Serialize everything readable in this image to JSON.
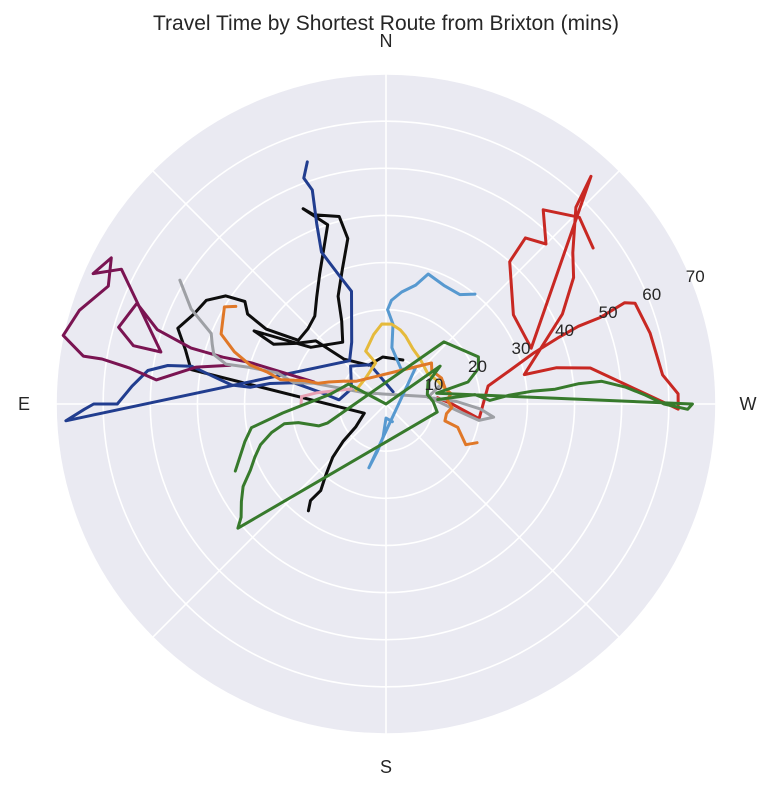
{
  "chart_data": {
    "type": "polar-line",
    "title": "Travel Time by Shortest Route from Brixton (mins)",
    "directions": {
      "north": "N",
      "east": "E",
      "south": "S",
      "west": "W"
    },
    "radial_axis": {
      "ticks": [
        10,
        20,
        30,
        40,
        50,
        60,
        70
      ],
      "tick_labels": [
        "10",
        "20",
        "30",
        "40",
        "50",
        "60",
        "70"
      ],
      "range": [
        0,
        70
      ]
    },
    "grid": true,
    "angle_convention": "bearing in degrees from North, East on the left, West on the right",
    "series": [
      {
        "color": "#c82823",
        "points": [
          [
            -83,
            11
          ],
          [
            -90,
            14
          ],
          [
            -99,
            20
          ],
          [
            -80,
            22
          ],
          [
            -75,
            27
          ],
          [
            -71,
            33
          ],
          [
            -69,
            39
          ],
          [
            -68,
            44
          ],
          [
            -68,
            49
          ],
          [
            -67,
            55
          ],
          [
            -68,
            57
          ],
          [
            -75,
            58
          ],
          [
            -84,
            59
          ],
          [
            -88,
            62
          ],
          [
            -91,
            62
          ],
          [
            -80,
            44
          ],
          [
            -78,
            37
          ],
          [
            -78,
            30
          ],
          [
            -63,
            42
          ],
          [
            -56,
            48
          ],
          [
            -51,
            51
          ],
          [
            -44,
            58
          ],
          [
            -42,
            65
          ],
          [
            -69,
            33
          ],
          [
            -55,
            33
          ],
          [
            -41,
            40
          ],
          [
            -40,
            46
          ],
          [
            -45,
            48
          ],
          [
            -39,
            53
          ],
          [
            -46,
            57
          ],
          [
            -53,
            55
          ]
        ]
      },
      {
        "color": "#0d0d0d",
        "points": [
          [
            -21,
            10
          ],
          [
            4,
            10
          ],
          [
            24,
            9
          ],
          [
            43,
            13
          ],
          [
            48,
            20
          ],
          [
            56,
            23
          ],
          [
            62,
            27
          ],
          [
            61,
            32
          ],
          [
            53,
            20
          ],
          [
            35,
            16
          ],
          [
            28,
            20
          ],
          [
            24,
            25
          ],
          [
            18,
            30
          ],
          [
            13,
            36
          ],
          [
            14,
            41
          ],
          [
            21,
            43
          ],
          [
            23,
            45
          ],
          [
            18,
            40
          ],
          [
            27,
            31
          ],
          [
            33,
            27
          ],
          [
            39,
            24
          ],
          [
            46,
            23
          ],
          [
            54,
            23
          ],
          [
            58,
            30
          ],
          [
            57,
            35
          ],
          [
            54,
            37
          ],
          [
            56,
            41
          ],
          [
            60,
            44
          ],
          [
            65,
            45
          ],
          [
            70,
            47
          ],
          [
            75,
            44
          ],
          [
            80,
            42
          ],
          [
            113,
            5
          ],
          [
            127,
            8
          ],
          [
            131,
            12
          ],
          [
            135,
            16
          ],
          [
            140,
            20
          ],
          [
            143,
            23
          ],
          [
            142,
            26
          ],
          [
            144,
            28
          ]
        ]
      },
      {
        "color": "#213d8f",
        "points": [
          [
            -30,
            3
          ],
          [
            22,
            9
          ],
          [
            43,
            11
          ],
          [
            66,
            8
          ],
          [
            85,
            10
          ],
          [
            80,
            14
          ],
          [
            77,
            20
          ],
          [
            80,
            25
          ],
          [
            83,
            29
          ],
          [
            83,
            33
          ],
          [
            81,
            37
          ],
          [
            79,
            42
          ],
          [
            80,
            47
          ],
          [
            82,
            51
          ],
          [
            86,
            54
          ],
          [
            90,
            57
          ],
          [
            90,
            62
          ],
          [
            91,
            64
          ],
          [
            93,
            68
          ],
          [
            40,
            12
          ],
          [
            29,
            15
          ],
          [
            17,
            25
          ],
          [
            20,
            29
          ],
          [
            23,
            35
          ],
          [
            21,
            41
          ],
          [
            19,
            48
          ],
          [
            20,
            51
          ],
          [
            18,
            54
          ]
        ]
      },
      {
        "color": "#7a1452",
        "points": [
          [
            73,
            16
          ],
          [
            73,
            24
          ],
          [
            73,
            30
          ],
          [
            74,
            36
          ],
          [
            74,
            43
          ],
          [
            72,
            51
          ],
          [
            68,
            57
          ],
          [
            74,
            59
          ],
          [
            77,
            55
          ],
          [
            77,
            49
          ],
          [
            63,
            63
          ],
          [
            66,
            68
          ],
          [
            62,
            66
          ],
          [
            67,
            64
          ],
          [
            73,
            68
          ],
          [
            78,
            70
          ],
          [
            81,
            65
          ],
          [
            81,
            61
          ],
          [
            82,
            55
          ],
          [
            84,
            49
          ],
          [
            79,
            41
          ],
          [
            76,
            34
          ]
        ]
      },
      {
        "color": "#9ea0a5",
        "points": [
          [
            -69,
            13
          ],
          [
            -81,
            9
          ],
          [
            -88,
            15
          ],
          [
            -93,
            20
          ],
          [
            -97,
            23
          ],
          [
            -100,
            20
          ],
          [
            -95,
            15
          ],
          [
            -80,
            9
          ],
          [
            62,
            5
          ],
          [
            74,
            16
          ],
          [
            77,
            20
          ],
          [
            74,
            24
          ],
          [
            75,
            30
          ],
          [
            76,
            35
          ],
          [
            74,
            38
          ],
          [
            71,
            39
          ],
          [
            68,
            40
          ],
          [
            64,
            46
          ],
          [
            59,
            51
          ]
        ]
      },
      {
        "color": "#5799d0",
        "points": [
          [
            -160,
            4
          ],
          [
            -180,
            3
          ],
          [
            175,
            7
          ],
          [
            170,
            10
          ],
          [
            165,
            14
          ],
          [
            -39,
            10
          ],
          [
            -24,
            8
          ],
          [
            -6,
            12
          ],
          [
            -5,
            17
          ],
          [
            -1,
            20
          ],
          [
            -3,
            22
          ],
          [
            -8,
            24
          ],
          [
            -14,
            26
          ],
          [
            -18,
            29
          ],
          [
            -26,
            28
          ],
          [
            -34,
            28
          ],
          [
            -39,
            30
          ]
        ]
      },
      {
        "color": "#e5ba3c",
        "points": [
          [
            65,
            7
          ],
          [
            38,
            7
          ],
          [
            14,
            9
          ],
          [
            21,
            12
          ],
          [
            10,
            15
          ],
          [
            3,
            17
          ],
          [
            -4,
            17
          ],
          [
            -11,
            16
          ],
          [
            -16,
            15
          ],
          [
            -26,
            13
          ],
          [
            -37,
            12
          ],
          [
            -53,
            11
          ],
          [
            -66,
            12
          ],
          [
            -76,
            13
          ]
        ]
      },
      {
        "color": "#e07828",
        "points": [
          [
            -113,
            21
          ],
          [
            -117,
            19
          ],
          [
            -108,
            16
          ],
          [
            -106,
            13
          ],
          [
            -99,
            13
          ],
          [
            -93,
            14
          ],
          [
            -86,
            13
          ],
          [
            -81,
            14
          ],
          [
            -76,
            13
          ],
          [
            -65,
            13
          ],
          [
            -54,
            12
          ],
          [
            -48,
            13
          ],
          [
            53,
            8
          ],
          [
            61,
            10
          ],
          [
            69,
            13
          ],
          [
            73,
            15
          ],
          [
            74,
            18
          ],
          [
            77,
            23
          ],
          [
            75,
            26
          ],
          [
            74,
            30
          ],
          [
            71,
            34
          ],
          [
            67,
            38
          ],
          [
            59,
            40
          ],
          [
            57,
            38
          ]
        ]
      },
      {
        "color": "#e8a1b4",
        "points": [
          [
            66,
            8
          ],
          [
            77,
            12
          ],
          [
            81,
            15
          ],
          [
            85,
            18
          ],
          [
            90,
            18
          ]
        ]
      },
      {
        "color": "#377a2c",
        "points": [
          [
            -85,
            11
          ],
          [
            -84,
            19
          ],
          [
            -88,
            22
          ],
          [
            -86,
            26
          ],
          [
            -85,
            31
          ],
          [
            -85,
            36
          ],
          [
            -84,
            41
          ],
          [
            -84,
            46
          ],
          [
            -86,
            51
          ],
          [
            -88,
            55
          ],
          [
            -90,
            59
          ],
          [
            -91,
            64
          ],
          [
            -90,
            65
          ],
          [
            -78,
            11
          ],
          [
            -75,
            18
          ],
          [
            -69,
            21
          ],
          [
            -63,
            22
          ],
          [
            -43,
            18
          ],
          [
            108,
            13
          ],
          [
            108,
            15
          ],
          [
            102,
            19
          ],
          [
            101,
            22
          ],
          [
            104,
            25
          ],
          [
            108,
            28
          ],
          [
            112,
            30
          ],
          [
            116,
            32
          ],
          [
            120,
            35
          ],
          [
            124,
            37
          ],
          [
            128,
            39
          ],
          [
            130,
            41
          ],
          [
            -99,
            11
          ],
          [
            -87,
            10
          ],
          [
            -77,
            9
          ],
          [
            -63,
            10
          ],
          [
            -55,
            14
          ],
          [
            0,
            0
          ],
          [
            62,
            9
          ],
          [
            80,
            12
          ],
          [
            95,
            22
          ],
          [
            100,
            29
          ],
          [
            105,
            31
          ],
          [
            110,
            33
          ],
          [
            114,
            35
          ]
        ]
      }
    ]
  }
}
